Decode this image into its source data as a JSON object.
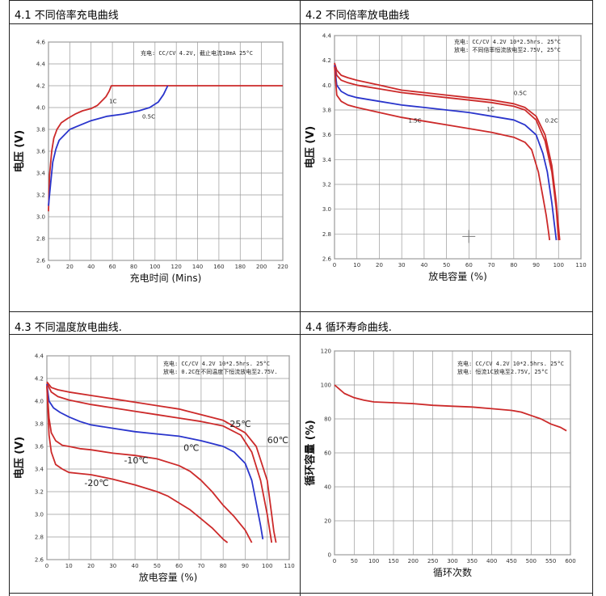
{
  "panels": [
    {
      "title": "4.1  不同倍率充电曲线",
      "chart_data": {
        "type": "line",
        "xlabel": "充电时间 (Mins)",
        "ylabel": "电压 (V)",
        "xlim": [
          0,
          220
        ],
        "ylim": [
          2.6,
          4.6
        ],
        "xticks": [
          "0",
          "20",
          "40",
          "60",
          "80",
          "100",
          "120",
          "140",
          "160",
          "180",
          "200",
          "220"
        ],
        "yticks": [
          "2.6",
          "2.8",
          "3.0",
          "3.2",
          "3.4",
          "3.6",
          "3.8",
          "4.0",
          "4.2",
          "4.4",
          "4.6"
        ],
        "notes": [
          "充电: CC/CV 4.2V, 截止电流10mA 25°C"
        ],
        "series": [
          {
            "name": "1C",
            "color": "#cc2a2a",
            "x": [
              0,
              1,
              3,
              5,
              8,
              12,
              18,
              25,
              32,
              40,
              46,
              50,
              54,
              57,
              59,
              62,
              70,
              80,
              100,
              120,
              140,
              160,
              180,
              200,
              220
            ],
            "y": [
              3.05,
              3.38,
              3.6,
              3.72,
              3.8,
              3.86,
              3.9,
              3.94,
              3.97,
              3.99,
              4.02,
              4.06,
              4.1,
              4.15,
              4.2,
              4.2,
              4.2,
              4.2,
              4.2,
              4.2,
              4.2,
              4.2,
              4.2,
              4.2,
              4.2
            ]
          },
          {
            "name": "0.5C",
            "color": "#2a35cc",
            "x": [
              0,
              2,
              4,
              7,
              10,
              15,
              20,
              30,
              40,
              55,
              70,
              85,
              95,
              103,
              108,
              112
            ],
            "y": [
              3.1,
              3.3,
              3.5,
              3.62,
              3.7,
              3.75,
              3.8,
              3.84,
              3.88,
              3.92,
              3.94,
              3.97,
              4.0,
              4.05,
              4.12,
              4.2
            ]
          }
        ],
        "annotations": [
          {
            "text": "1C",
            "x": 57,
            "y": 4.04
          },
          {
            "text": "0.5C",
            "x": 88,
            "y": 3.9
          }
        ]
      }
    },
    {
      "title": "4.2 不同倍率放电曲线",
      "chart_data": {
        "type": "line",
        "xlabel": "放电容量 (%)",
        "ylabel": "电压 (V)",
        "xlim": [
          0,
          110
        ],
        "ylim": [
          2.6,
          4.4
        ],
        "xticks": [
          "0",
          "10",
          "20",
          "30",
          "40",
          "50",
          "60",
          "70",
          "80",
          "90",
          "100",
          "110"
        ],
        "yticks": [
          "2.6",
          "2.8",
          "3.0",
          "3.2",
          "3.4",
          "3.6",
          "3.8",
          "4.0",
          "4.2",
          "4.4"
        ],
        "notes": [
          "充电: CC/CV 4.2V 10*2.5hrs.  25°C",
          "放电: 不同倍率恒流放电至2.75V, 25°C"
        ],
        "series": [
          {
            "name": "0.2C",
            "color": "#cc2a2a",
            "x": [
              0,
              1,
              3,
              6,
              10,
              20,
              30,
              40,
              50,
              60,
              70,
              80,
              85,
              90,
              94,
              97,
              99,
              100.5
            ],
            "y": [
              4.18,
              4.12,
              4.08,
              4.06,
              4.04,
              4.0,
              3.96,
              3.94,
              3.92,
              3.9,
              3.88,
              3.85,
              3.82,
              3.75,
              3.6,
              3.35,
              3.05,
              2.75
            ]
          },
          {
            "name": "0.5C",
            "color": "#cc2a2a",
            "x": [
              0,
              1,
              3,
              6,
              10,
              20,
              30,
              40,
              50,
              60,
              70,
              80,
              85,
              90,
              94,
              97,
              99,
              100
            ],
            "y": [
              4.17,
              4.08,
              4.04,
              4.02,
              4.0,
              3.97,
              3.94,
              3.92,
              3.9,
              3.88,
              3.86,
              3.83,
              3.8,
              3.72,
              3.55,
              3.3,
              3.0,
              2.75
            ]
          },
          {
            "name": "1C",
            "color": "#2a35cc",
            "x": [
              0,
              1,
              3,
              6,
              10,
              20,
              30,
              40,
              50,
              60,
              70,
              80,
              85,
              90,
              93,
              95,
              97,
              98,
              99
            ],
            "y": [
              4.16,
              4.0,
              3.95,
              3.92,
              3.9,
              3.87,
              3.84,
              3.82,
              3.8,
              3.78,
              3.75,
              3.72,
              3.68,
              3.6,
              3.45,
              3.3,
              3.05,
              2.9,
              2.75
            ]
          },
          {
            "name": "1.5C",
            "color": "#cc2a2a",
            "x": [
              0,
              1,
              3,
              6,
              10,
              20,
              30,
              40,
              50,
              60,
              70,
              80,
              85,
              88,
              91,
              93,
              94.5,
              95.5,
              96
            ],
            "y": [
              4.15,
              3.92,
              3.87,
              3.84,
              3.82,
              3.78,
              3.74,
              3.71,
              3.68,
              3.65,
              3.62,
              3.58,
              3.54,
              3.48,
              3.3,
              3.1,
              2.95,
              2.82,
              2.75
            ]
          }
        ],
        "annotations": [
          {
            "text": "0.5C",
            "x": 80,
            "y": 3.92
          },
          {
            "text": "0.2C",
            "x": 94,
            "y": 3.7
          },
          {
            "text": "1.5C",
            "x": 33,
            "y": 3.7
          },
          {
            "text": "1C",
            "x": 68,
            "y": 3.79
          }
        ]
      }
    },
    {
      "title": "4.3 不同温度放电曲线.",
      "chart_data": {
        "type": "line",
        "xlabel": "放电容量 (%)",
        "ylabel": "电压 (V)",
        "xlim": [
          0,
          110
        ],
        "ylim": [
          2.6,
          4.4
        ],
        "xticks": [
          "0",
          "10",
          "20",
          "30",
          "40",
          "50",
          "60",
          "70",
          "80",
          "90",
          "100",
          "110"
        ],
        "yticks": [
          "2.6",
          "2.8",
          "3.0",
          "3.2",
          "3.4",
          "3.6",
          "3.8",
          "4.0",
          "4.2",
          "4.4"
        ],
        "notes": [
          "充电: CC/CV 4.2V 10*2.5hrs.  25°C",
          "放电: 0.2C在不同温度下恒流放电至2.75V."
        ],
        "series": [
          {
            "name": "60°C",
            "color": "#cc2a2a",
            "x": [
              0,
              2,
              5,
              10,
              20,
              30,
              40,
              50,
              60,
              70,
              80,
              90,
              95,
              100,
              102,
              103,
              104
            ],
            "y": [
              4.17,
              4.12,
              4.1,
              4.08,
              4.05,
              4.02,
              3.99,
              3.96,
              3.93,
              3.88,
              3.83,
              3.72,
              3.6,
              3.3,
              3.0,
              2.85,
              2.75
            ]
          },
          {
            "name": "25°C",
            "color": "#cc2a2a",
            "x": [
              0,
              2,
              5,
              10,
              20,
              30,
              40,
              50,
              60,
              70,
              80,
              88,
              93,
              97,
              100,
              102
            ],
            "y": [
              4.16,
              4.08,
              4.04,
              4.01,
              3.97,
              3.94,
              3.91,
              3.88,
              3.85,
              3.82,
              3.78,
              3.7,
              3.55,
              3.3,
              3.0,
              2.75
            ]
          },
          {
            "name": "0°C",
            "color": "#2a35cc",
            "x": [
              0,
              1,
              3,
              6,
              10,
              15,
              20,
              30,
              40,
              50,
              60,
              70,
              80,
              85,
              90,
              93,
              95,
              97,
              98
            ],
            "y": [
              4.15,
              4.0,
              3.94,
              3.9,
              3.86,
              3.82,
              3.79,
              3.76,
              3.73,
              3.71,
              3.69,
              3.65,
              3.6,
              3.55,
              3.45,
              3.3,
              3.1,
              2.9,
              2.78
            ]
          },
          {
            "name": "-10°C",
            "color": "#cc2a2a",
            "x": [
              0,
              1,
              2,
              4,
              7,
              10,
              15,
              20,
              30,
              40,
              50,
              60,
              65,
              70,
              75,
              80,
              85,
              90,
              93
            ],
            "y": [
              4.14,
              3.85,
              3.72,
              3.65,
              3.61,
              3.6,
              3.58,
              3.57,
              3.54,
              3.52,
              3.49,
              3.43,
              3.38,
              3.3,
              3.2,
              3.08,
              2.98,
              2.86,
              2.75
            ]
          },
          {
            "name": "-20°C",
            "color": "#cc2a2a",
            "x": [
              0,
              1,
              2,
              4,
              7,
              10,
              15,
              20,
              25,
              30,
              40,
              50,
              55,
              60,
              65,
              70,
              75,
              80,
              82
            ],
            "y": [
              4.13,
              3.7,
              3.55,
              3.44,
              3.4,
              3.37,
              3.36,
              3.35,
              3.33,
              3.31,
              3.26,
              3.2,
              3.16,
              3.1,
              3.04,
              2.96,
              2.88,
              2.78,
              2.75
            ]
          }
        ],
        "annotations": [
          {
            "text": "25℃",
            "x": 83,
            "y": 3.77
          },
          {
            "text": "60℃",
            "x": 100,
            "y": 3.63
          },
          {
            "text": "0℃",
            "x": 62,
            "y": 3.56
          },
          {
            "text": "-10℃",
            "x": 35,
            "y": 3.45
          },
          {
            "text": "-20℃",
            "x": 17,
            "y": 3.25
          }
        ]
      }
    },
    {
      "title": "4.4  循环寿命曲线.",
      "chart_data": {
        "type": "line",
        "xlabel": "循环次数",
        "ylabel": "循环容量 (%)",
        "xlim": [
          0,
          600
        ],
        "ylim": [
          0,
          120
        ],
        "xticks": [
          "0",
          "50",
          "100",
          "150",
          "200",
          "250",
          "300",
          "350",
          "400",
          "450",
          "500",
          "550",
          "600"
        ],
        "yticks": [
          "0",
          "20",
          "40",
          "60",
          "80",
          "100",
          "120"
        ],
        "notes": [
          "充电: CC/CV 4.2V 10*2.5hrs.  25°C",
          "放电: 恒流1C放电至2.75V, 25°C"
        ],
        "series": [
          {
            "name": "",
            "color": "#cc2a2a",
            "x": [
              0,
              10,
              25,
              50,
              75,
              100,
              150,
              200,
              250,
              300,
              350,
              400,
              450,
              475,
              500,
              525,
              550,
              575,
              590
            ],
            "y": [
              100,
              98,
              95,
              92.5,
              91,
              90,
              89.5,
              89,
              88,
              87.5,
              87,
              86,
              85,
              84,
              82,
              80,
              77,
              75,
              73
            ]
          }
        ],
        "annotations": []
      }
    }
  ]
}
